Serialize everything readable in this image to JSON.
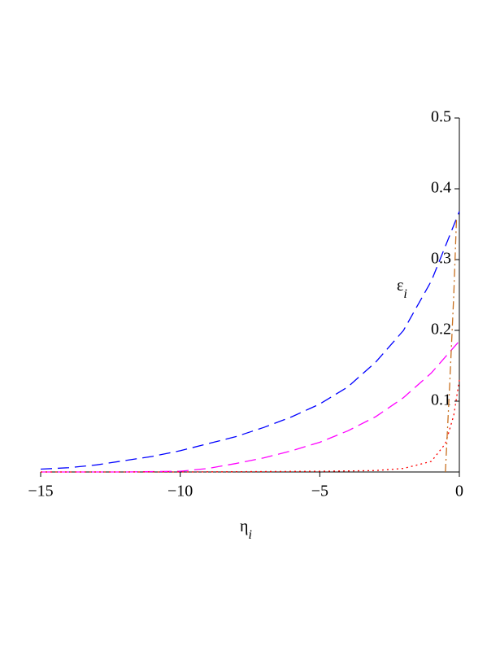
{
  "chart_data": {
    "type": "line",
    "x_label": "η",
    "x_label_sub": "i",
    "y_label": "ε",
    "y_label_sub": "i",
    "xlim": [
      -15,
      0
    ],
    "ylim": [
      0,
      0.5
    ],
    "xticks": [
      {
        "value": -15,
        "label": "−15"
      },
      {
        "value": -10,
        "label": "−10"
      },
      {
        "value": -5,
        "label": "−5"
      },
      0
    ],
    "yticks": [
      0.1,
      0.2,
      0.3,
      0.4,
      0.5
    ],
    "series": [
      {
        "color": "#0000ff",
        "dash": "14,7",
        "x": [
          -15,
          -14,
          -13,
          -12,
          -11,
          -10,
          -9,
          -8,
          -7,
          -6,
          -5,
          -4,
          -3,
          -2,
          -1,
          0
        ],
        "values": [
          0.004,
          0.006,
          0.01,
          0.016,
          0.022,
          0.03,
          0.04,
          0.05,
          0.063,
          0.078,
          0.096,
          0.12,
          0.155,
          0.2,
          0.27,
          0.368
        ]
      },
      {
        "color": "#ff00ff",
        "dash": "14,7",
        "x": [
          -15,
          -12,
          -10,
          -9,
          -8,
          -7,
          -6,
          -5,
          -4,
          -3,
          -2,
          -1,
          0
        ],
        "values": [
          0,
          0,
          0.001,
          0.005,
          0.012,
          0.02,
          0.03,
          0.042,
          0.058,
          0.078,
          0.105,
          0.14,
          0.185
        ]
      },
      {
        "color": "#ff0000",
        "dash": "2,4",
        "x": [
          -15,
          -10,
          -5,
          -3,
          -2,
          -1,
          -0.5,
          -0.2,
          0
        ],
        "values": [
          0,
          0,
          0.001,
          0.002,
          0.005,
          0.015,
          0.04,
          0.08,
          0.13
        ]
      },
      {
        "color": "#c87020",
        "dash": "10,4,2,4",
        "x": [
          -0.5,
          -0.35,
          -0.2,
          -0.1
        ],
        "values": [
          0,
          0.12,
          0.25,
          0.36
        ]
      }
    ]
  }
}
